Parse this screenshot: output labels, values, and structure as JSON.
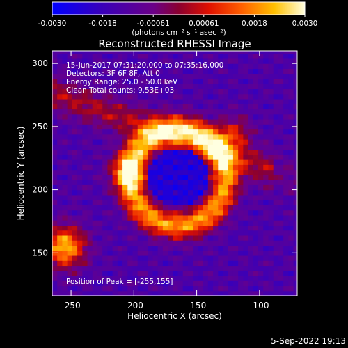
{
  "chart_data": {
    "type": "heatmap",
    "title": "Reconstructed RHESSI Image",
    "xlabel": "Heliocentric X (arcsec)",
    "ylabel": "Heliocentric Y (arcsec)",
    "xlim": [
      -265,
      -70
    ],
    "ylim": [
      116,
      310
    ],
    "xticks": [
      -250,
      -200,
      -150,
      -100
    ],
    "yticks": [
      150,
      200,
      250,
      300
    ],
    "colorbar": {
      "min": -0.003,
      "max": 0.003,
      "ticks": [
        "-0.0030",
        "-0.0018",
        "-0.00061",
        "0.00061",
        "0.0018",
        "0.0030"
      ],
      "units_label": "(photons cm⁻² s⁻¹ asec⁻²)"
    },
    "info_lines": [
      "15-Jun-2017 07:31:20.000 to 07:35:16.000",
      "Detectors: 3F 6F 8F, Att 0",
      "Energy Range: 25.0 - 50.0 keV",
      "Clean     Total counts: 9.53E+03"
    ],
    "peak_label": "Position of Peak = [-255,155]",
    "peak": [
      -255,
      155
    ],
    "ring_center": [
      -165,
      210
    ],
    "ring_radius": 38
  },
  "footer": {
    "timestamp": "5-Sep-2022 19:13"
  }
}
